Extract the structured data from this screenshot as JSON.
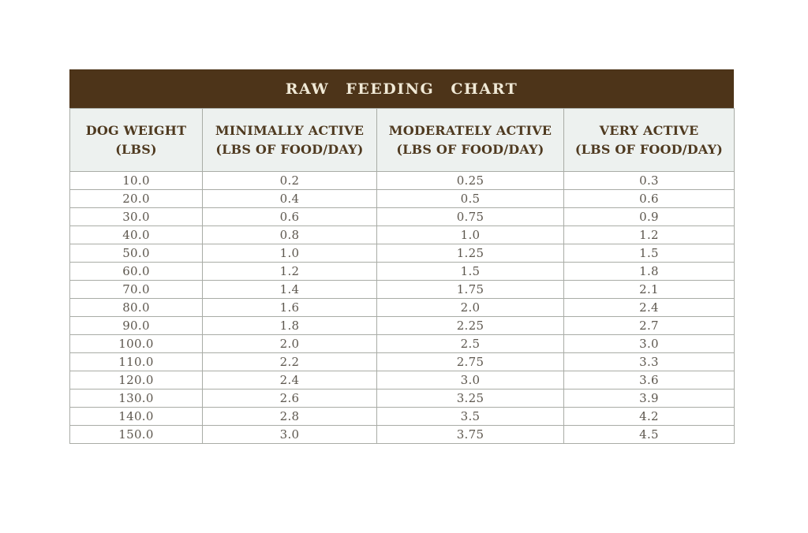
{
  "page": {
    "background": "#ffffff"
  },
  "colors": {
    "title_bar_bg": "#4d3419",
    "title_text": "#f0e9d6",
    "header_bg": "#edf1ef",
    "header_text": "#4f3a20",
    "cell_text": "#5d574e",
    "border": "#a9aca6"
  },
  "table": {
    "title": "RAW FEEDING CHART",
    "header": [
      {
        "line1": "DOG WEIGHT",
        "line2": "(LBS)"
      },
      {
        "line1": "MINIMALLY ACTIVE",
        "line2": "(LBS OF FOOD/DAY)"
      },
      {
        "line1": "MODERATELY ACTIVE",
        "line2": "(LBS OF FOOD/DAY)"
      },
      {
        "line1": "VERY ACTIVE",
        "line2": "(LBS OF FOOD/DAY)"
      }
    ],
    "rows": [
      [
        "10.0",
        "0.2",
        "0.25",
        "0.3"
      ],
      [
        "20.0",
        "0.4",
        "0.5",
        "0.6"
      ],
      [
        "30.0",
        "0.6",
        "0.75",
        "0.9"
      ],
      [
        "40.0",
        "0.8",
        "1.0",
        "1.2"
      ],
      [
        "50.0",
        "1.0",
        "1.25",
        "1.5"
      ],
      [
        "60.0",
        "1.2",
        "1.5",
        "1.8"
      ],
      [
        "70.0",
        "1.4",
        "1.75",
        "2.1"
      ],
      [
        "80.0",
        "1.6",
        "2.0",
        "2.4"
      ],
      [
        "90.0",
        "1.8",
        "2.25",
        "2.7"
      ],
      [
        "100.0",
        "2.0",
        "2.5",
        "3.0"
      ],
      [
        "110.0",
        "2.2",
        "2.75",
        "3.3"
      ],
      [
        "120.0",
        "2.4",
        "3.0",
        "3.6"
      ],
      [
        "130.0",
        "2.6",
        "3.25",
        "3.9"
      ],
      [
        "140.0",
        "2.8",
        "3.5",
        "4.2"
      ],
      [
        "150.0",
        "3.0",
        "3.75",
        "4.5"
      ]
    ]
  },
  "chart_data": {
    "type": "table",
    "title": "RAW FEEDING CHART",
    "columns": [
      "DOG WEIGHT (LBS)",
      "MINIMALLY ACTIVE (LBS OF FOOD/DAY)",
      "MODERATELY ACTIVE (LBS OF FOOD/DAY)",
      "VERY ACTIVE (LBS OF FOOD/DAY)"
    ],
    "rows": [
      [
        10.0,
        0.2,
        0.25,
        0.3
      ],
      [
        20.0,
        0.4,
        0.5,
        0.6
      ],
      [
        30.0,
        0.6,
        0.75,
        0.9
      ],
      [
        40.0,
        0.8,
        1.0,
        1.2
      ],
      [
        50.0,
        1.0,
        1.25,
        1.5
      ],
      [
        60.0,
        1.2,
        1.5,
        1.8
      ],
      [
        70.0,
        1.4,
        1.75,
        2.1
      ],
      [
        80.0,
        1.6,
        2.0,
        2.4
      ],
      [
        90.0,
        1.8,
        2.25,
        2.7
      ],
      [
        100.0,
        2.0,
        2.5,
        3.0
      ],
      [
        110.0,
        2.2,
        2.75,
        3.3
      ],
      [
        120.0,
        2.4,
        3.0,
        3.6
      ],
      [
        130.0,
        2.6,
        3.25,
        3.9
      ],
      [
        140.0,
        2.8,
        3.5,
        4.2
      ],
      [
        150.0,
        3.0,
        3.75,
        4.5
      ]
    ]
  }
}
